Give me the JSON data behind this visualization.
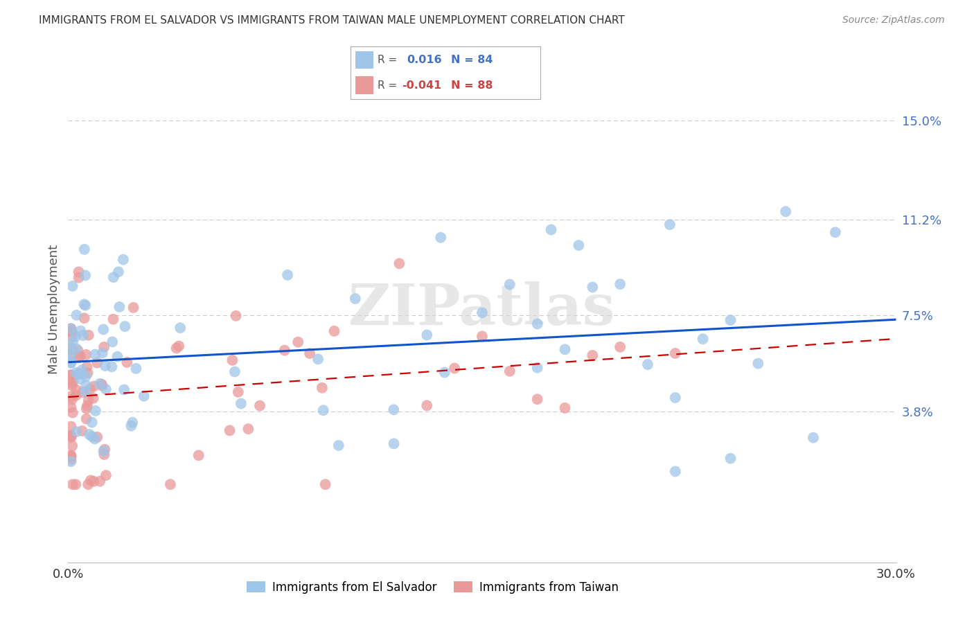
{
  "title": "IMMIGRANTS FROM EL SALVADOR VS IMMIGRANTS FROM TAIWAN MALE UNEMPLOYMENT CORRELATION CHART",
  "source": "Source: ZipAtlas.com",
  "ylabel": "Male Unemployment",
  "ytick_labels": [
    "15.0%",
    "11.2%",
    "7.5%",
    "3.8%"
  ],
  "ytick_values": [
    0.15,
    0.112,
    0.075,
    0.038
  ],
  "xlim": [
    0.0,
    0.3
  ],
  "ylim": [
    -0.02,
    0.175
  ],
  "color_blue": "#9fc5e8",
  "color_pink": "#ea9999",
  "line_blue": "#1155cc",
  "line_pink": "#cc0000",
  "watermark": "ZIPatlas",
  "background_color": "#ffffff",
  "grid_color": "#c8c8c8",
  "title_fontsize": 11,
  "axis_fontsize": 13,
  "legend_fontsize": 12,
  "r1_val": "0.016",
  "r2_val": "-0.041",
  "n1_val": "84",
  "n2_val": "88",
  "r_color": "0.016",
  "r1_color": "#4472c4",
  "r2_color": "#cc4444",
  "legend_label1": "Immigrants from El Salvador",
  "legend_label2": "Immigrants from Taiwan"
}
